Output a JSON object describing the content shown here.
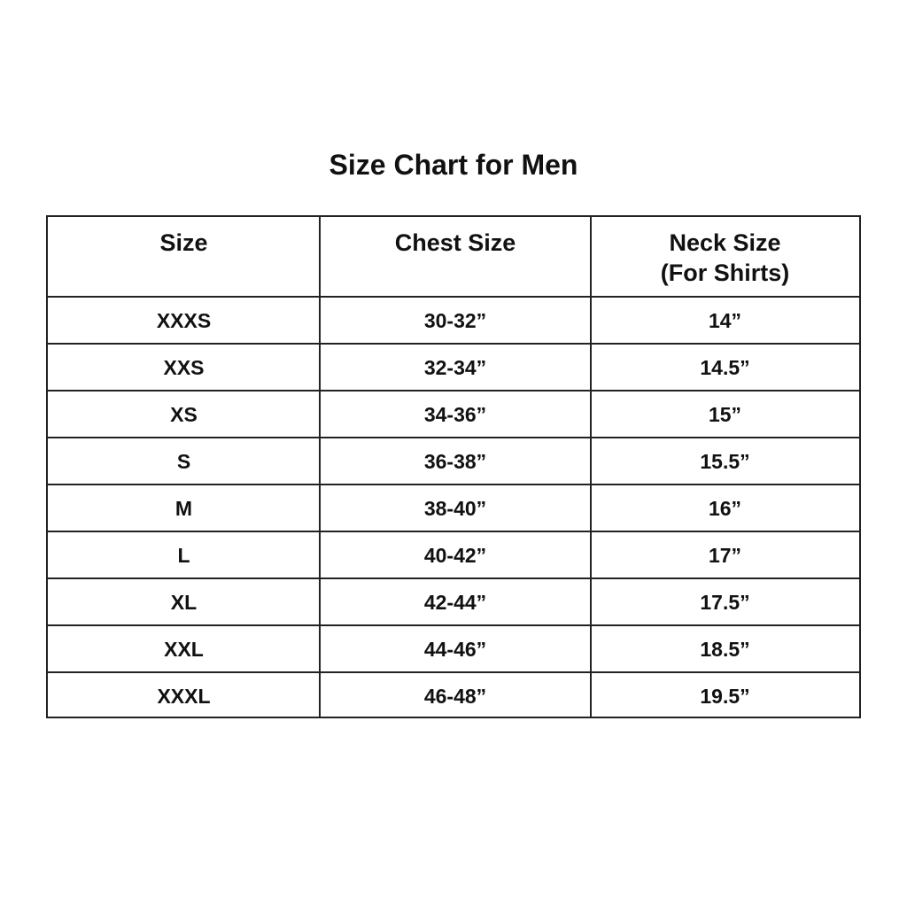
{
  "title": "Size Chart for Men",
  "table": {
    "header": [
      "Size",
      "Chest Size",
      "Neck Size\n(For Shirts)"
    ],
    "rows": [
      [
        "XXXS",
        "30-32”",
        "14”"
      ],
      [
        "XXS",
        "32-34”",
        "14.5”"
      ],
      [
        "XS",
        "34-36”",
        "15”"
      ],
      [
        "S",
        "36-38”",
        "15.5”"
      ],
      [
        "M",
        "38-40”",
        "16”"
      ],
      [
        "L",
        "40-42”",
        "17”"
      ],
      [
        "XL",
        "42-44”",
        "17.5”"
      ],
      [
        "XXL",
        "44-46”",
        "18.5”"
      ],
      [
        "XXXL",
        "46-48”",
        "19.5”"
      ]
    ]
  }
}
